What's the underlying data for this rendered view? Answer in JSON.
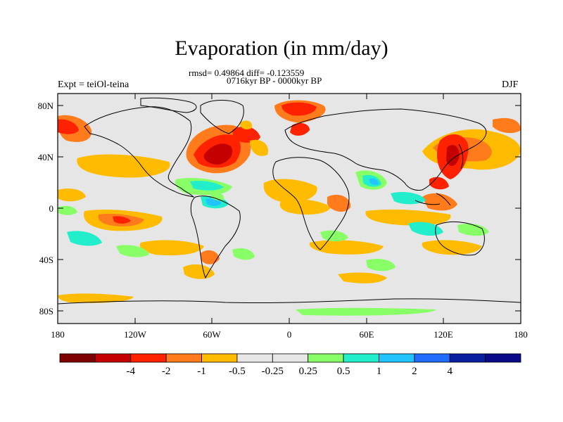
{
  "title": "Evaporation (in mm/day)",
  "stats": "rmsd= 0.49864  diff= -0.123559",
  "period": "0716kyr BP - 0000kyr BP",
  "experiment": "Expt = teiOl-teina",
  "season": "DJF",
  "axes": {
    "lat_labels": [
      "80N",
      "40N",
      "0",
      "40S",
      "80S"
    ],
    "lon_labels": [
      "180",
      "120W",
      "60W",
      "0",
      "60E",
      "120E",
      "180"
    ]
  },
  "colorbar": {
    "colors": [
      "#7f0000",
      "#c40000",
      "#ff2200",
      "#ff7b1c",
      "#ffbb00",
      "#e6e6e6",
      "#e6e6e6",
      "#88ff66",
      "#22eecc",
      "#22c4ff",
      "#1f6cff",
      "#0a1fa0",
      "#0a0a88"
    ],
    "labels": [
      "-4",
      "-2",
      "-1",
      "-0.5",
      "-0.25",
      "0.25",
      "0.5",
      "1",
      "2",
      "4"
    ]
  }
}
